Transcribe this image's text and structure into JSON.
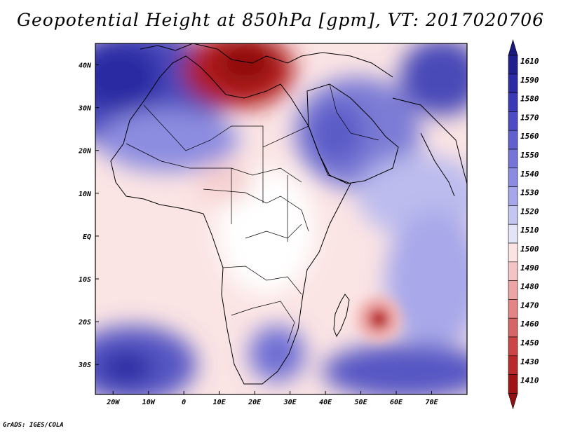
{
  "title": "Geopotential Height at 850hPa [gpm], VT: 2017020706",
  "credit": "GrADS: IGES/COLA",
  "map": {
    "lon_range": [
      -25,
      80
    ],
    "lat_range": [
      -37,
      45
    ],
    "lon_ticks": [
      {
        "value": -20,
        "label": "20W"
      },
      {
        "value": -10,
        "label": "10W"
      },
      {
        "value": 0,
        "label": "0"
      },
      {
        "value": 10,
        "label": "10E"
      },
      {
        "value": 20,
        "label": "20E"
      },
      {
        "value": 30,
        "label": "30E"
      },
      {
        "value": 40,
        "label": "40E"
      },
      {
        "value": 50,
        "label": "50E"
      },
      {
        "value": 60,
        "label": "60E"
      },
      {
        "value": 70,
        "label": "70E"
      }
    ],
    "lat_ticks": [
      {
        "value": 40,
        "label": "40N"
      },
      {
        "value": 30,
        "label": "30N"
      },
      {
        "value": 20,
        "label": "20N"
      },
      {
        "value": 10,
        "label": "10N"
      },
      {
        "value": 0,
        "label": "EQ"
      },
      {
        "value": -10,
        "label": "10S"
      },
      {
        "value": -20,
        "label": "20S"
      },
      {
        "value": -30,
        "label": "30S"
      }
    ]
  },
  "colorbar": {
    "labels": [
      "1610",
      "1590",
      "1580",
      "1570",
      "1560",
      "1550",
      "1540",
      "1530",
      "1520",
      "1510",
      "1500",
      "1490",
      "1480",
      "1470",
      "1460",
      "1450",
      "1430",
      "1410"
    ],
    "colors": [
      "#1f1f8f",
      "#2b2ba3",
      "#3a3ab6",
      "#4c4cc4",
      "#6060cf",
      "#7474d9",
      "#8b8be1",
      "#a6a6ea",
      "#c5c5f2",
      "#e4e4f8",
      "#fbe3e3",
      "#f4c4c4",
      "#eca4a4",
      "#e38585",
      "#d86565",
      "#cc4646",
      "#bb2a2a",
      "#a11313"
    ],
    "top_cap_color": "#1a1a80",
    "bottom_cap_color": "#931010"
  }
}
